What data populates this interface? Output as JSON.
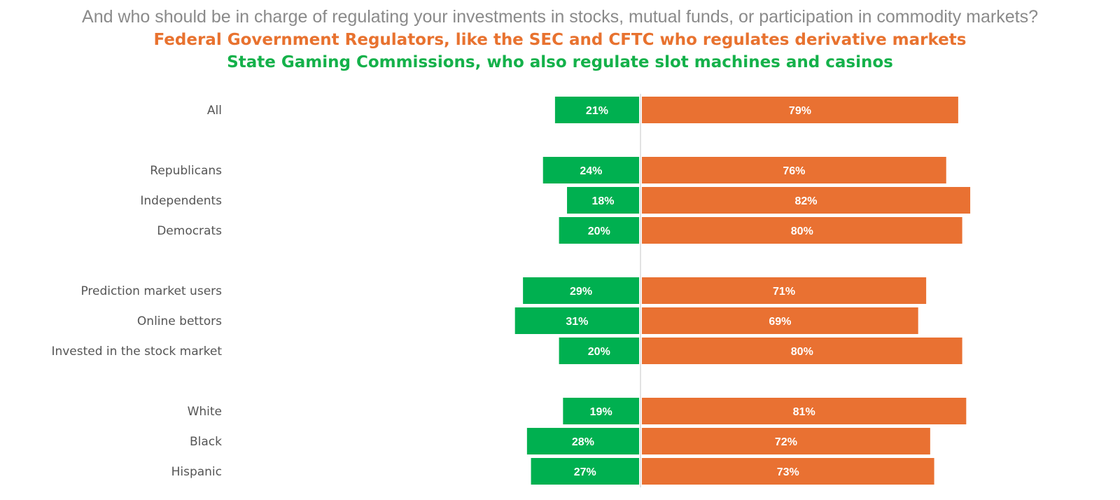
{
  "header": {
    "question": "And who should be in charge of regulating your investments in stocks, mutual funds, or participation in commodity markets?",
    "option_federal": "Federal Government Regulators, like the SEC and CFTC who regulates derivative markets",
    "option_state": "State Gaming Commissions, who also regulate slot machines and casinos"
  },
  "chart_data": {
    "type": "bar",
    "orientation": "horizontal-diverging",
    "categories": [
      "All",
      "Republicans",
      "Independents",
      "Democrats",
      "Prediction market users",
      "Online bettors",
      "Invested in the stock market",
      "White",
      "Black",
      "Hispanic"
    ],
    "groups": [
      [
        "All"
      ],
      [
        "Republicans",
        "Independents",
        "Democrats"
      ],
      [
        "Prediction market users",
        "Online bettors",
        "Invested in the stock market"
      ],
      [
        "White",
        "Black",
        "Hispanic"
      ]
    ],
    "series": [
      {
        "name": "State Gaming Commissions, who also regulate slot machines and casinos",
        "color": "#00b050",
        "side": "left",
        "values": [
          21,
          24,
          18,
          20,
          29,
          31,
          20,
          19,
          28,
          27
        ],
        "labels": [
          "21%",
          "24%",
          "18%",
          "20%",
          "29%",
          "31%",
          "20%",
          "19%",
          "28%",
          "27%"
        ]
      },
      {
        "name": "Federal Government Regulators, like the SEC and CFTC who regulates derivative markets",
        "color": "#e97132",
        "side": "right",
        "values": [
          79,
          76,
          82,
          80,
          71,
          69,
          80,
          81,
          72,
          73
        ],
        "labels": [
          "79%",
          "76%",
          "82%",
          "80%",
          "71%",
          "69%",
          "80%",
          "81%",
          "72%",
          "73%"
        ]
      }
    ],
    "xlim": [
      -31,
      82
    ],
    "grid": false,
    "legend": "none"
  }
}
